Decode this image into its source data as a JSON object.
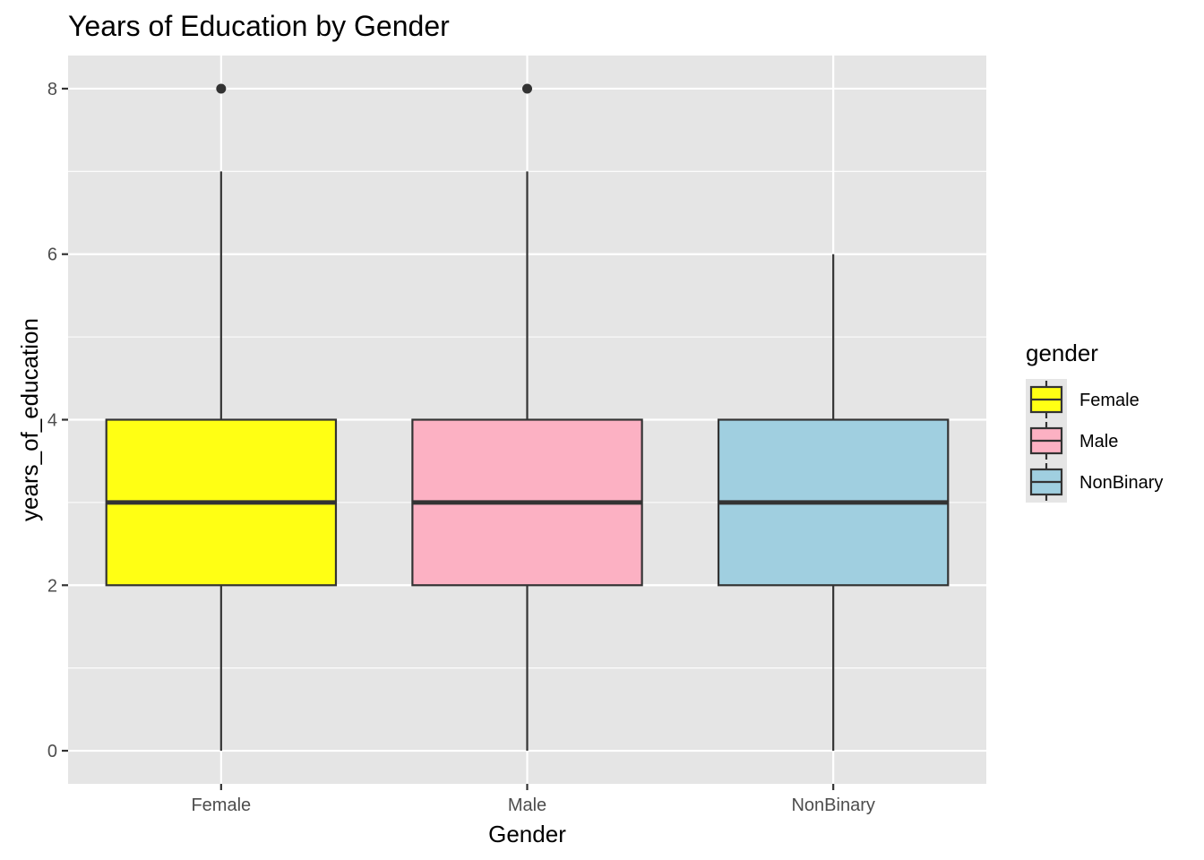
{
  "chart_data": {
    "type": "boxplot",
    "title": "Years of Education by Gender",
    "xlabel": "Gender",
    "ylabel": "years_of_education",
    "ylim": [
      -0.4,
      8.4
    ],
    "yticks": [
      0,
      2,
      4,
      6,
      8
    ],
    "grid": true,
    "legend": {
      "title": "gender",
      "position": "right",
      "entries": [
        "Female",
        "Male",
        "NonBinary"
      ]
    },
    "categories": [
      "Female",
      "Male",
      "NonBinary"
    ],
    "boxes": [
      {
        "category": "Female",
        "min": 0,
        "q1": 2,
        "median": 3,
        "q3": 4,
        "max": 7,
        "outliers": [
          8
        ],
        "color": "#ffff14"
      },
      {
        "category": "Male",
        "min": 0,
        "q1": 2,
        "median": 3,
        "q3": 4,
        "max": 7,
        "outliers": [
          8
        ],
        "color": "#fcb1c3"
      },
      {
        "category": "NonBinary",
        "min": 0,
        "q1": 2,
        "median": 3,
        "q3": 4,
        "max": 6,
        "outliers": [],
        "color": "#a0cfe0"
      }
    ],
    "colors": {
      "panel_bg": "#e5e5e5",
      "grid": "#ffffff",
      "box_line": "#333333"
    }
  }
}
